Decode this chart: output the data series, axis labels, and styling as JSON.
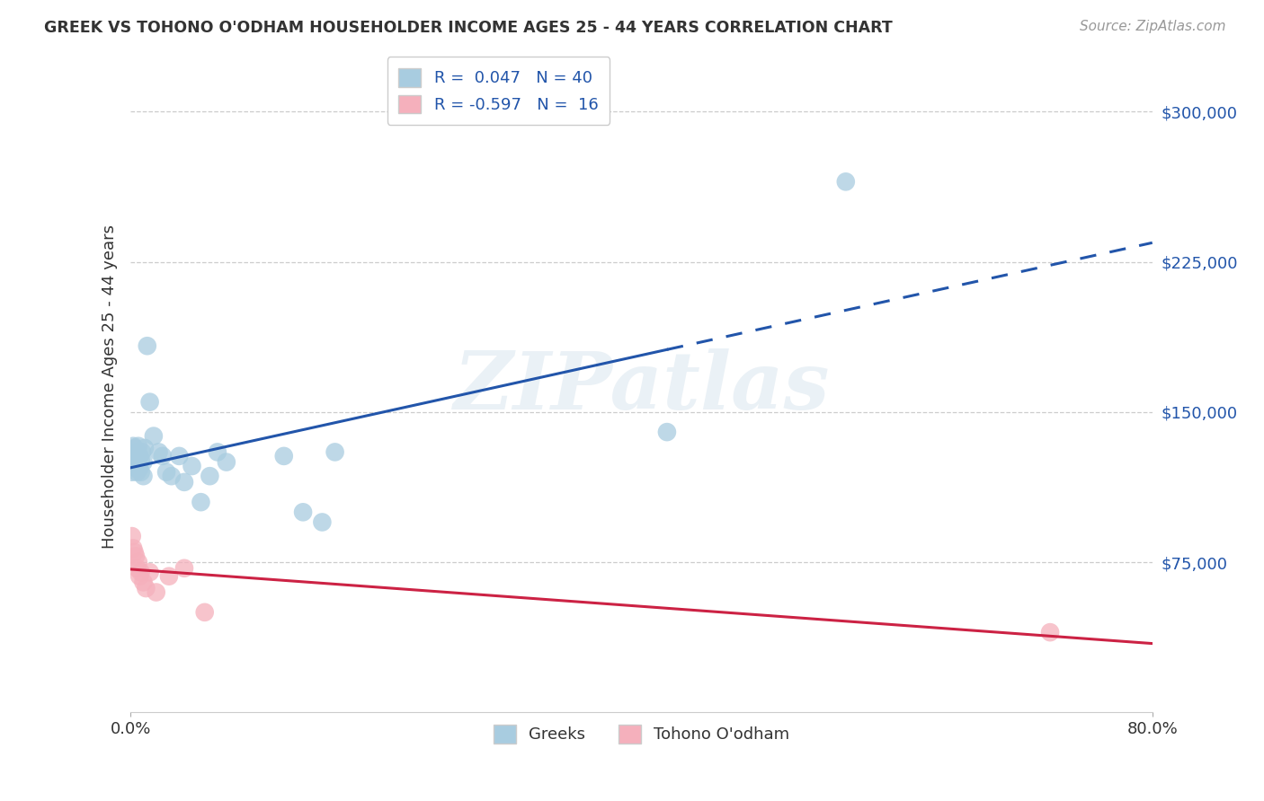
{
  "title": "GREEK VS TOHONO O'ODHAM HOUSEHOLDER INCOME AGES 25 - 44 YEARS CORRELATION CHART",
  "source": "Source: ZipAtlas.com",
  "ylabel": "Householder Income Ages 25 - 44 years",
  "xlim_min": 0.0,
  "xlim_max": 0.8,
  "ylim_min": 0,
  "ylim_max": 325000,
  "blue_color": "#a8cce0",
  "pink_color": "#f5b0bc",
  "blue_line_color": "#2255aa",
  "pink_line_color": "#cc2244",
  "legend_R_blue": "R =  0.047",
  "legend_N_blue": "N = 40",
  "legend_R_pink": "R = -0.597",
  "legend_N_pink": "N =  16",
  "legend_name_blue": "Greeks",
  "legend_name_pink": "Tohono O'odham",
  "watermark_text": "ZIPatlas",
  "background_color": "#ffffff",
  "grid_color": "#cccccc",
  "axis_label_color": "#2255aa",
  "title_color": "#333333",
  "greek_x": [
    0.001,
    0.002,
    0.002,
    0.003,
    0.003,
    0.004,
    0.004,
    0.005,
    0.005,
    0.005,
    0.006,
    0.006,
    0.007,
    0.007,
    0.008,
    0.008,
    0.009,
    0.01,
    0.01,
    0.011,
    0.013,
    0.015,
    0.018,
    0.022,
    0.025,
    0.028,
    0.032,
    0.038,
    0.042,
    0.048,
    0.055,
    0.062,
    0.068,
    0.075,
    0.12,
    0.135,
    0.15,
    0.16,
    0.42,
    0.56
  ],
  "greek_y": [
    120000,
    127000,
    133000,
    125000,
    132000,
    122000,
    128000,
    120000,
    125000,
    130000,
    127000,
    133000,
    122000,
    128000,
    120000,
    126000,
    130000,
    118000,
    125000,
    132000,
    183000,
    155000,
    138000,
    130000,
    128000,
    120000,
    118000,
    128000,
    115000,
    123000,
    105000,
    118000,
    130000,
    125000,
    128000,
    100000,
    95000,
    130000,
    140000,
    265000
  ],
  "tohono_x": [
    0.001,
    0.002,
    0.003,
    0.004,
    0.005,
    0.006,
    0.007,
    0.008,
    0.01,
    0.012,
    0.015,
    0.02,
    0.03,
    0.042,
    0.058,
    0.72
  ],
  "tohono_y": [
    88000,
    82000,
    80000,
    78000,
    72000,
    75000,
    68000,
    70000,
    65000,
    62000,
    70000,
    60000,
    68000,
    72000,
    50000,
    40000
  ],
  "greek_line_solid_end": 0.42,
  "greek_line_start": 0.0,
  "greek_line_end": 0.8
}
